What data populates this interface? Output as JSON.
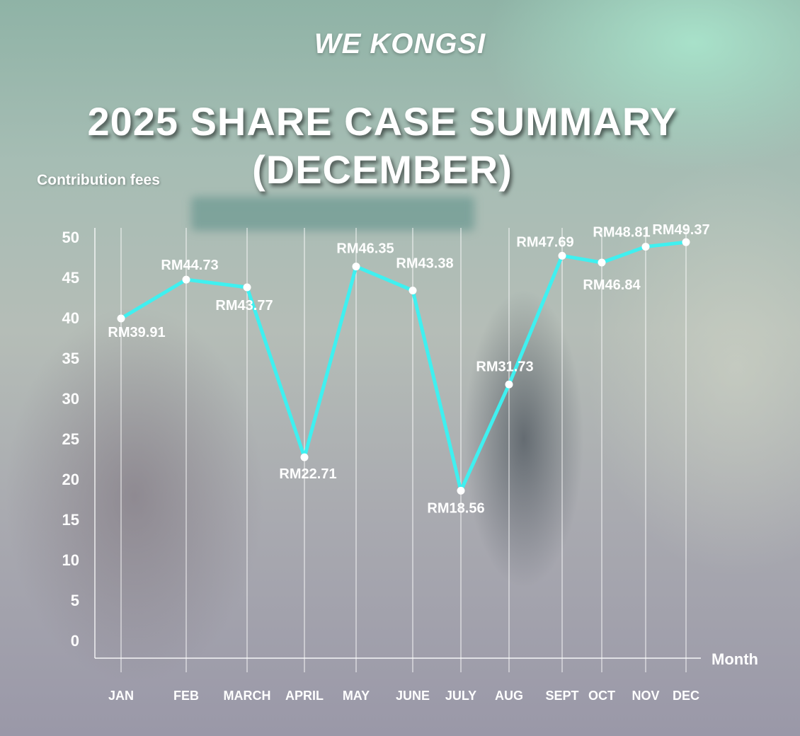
{
  "brand": {
    "logo_text": "WE KONGSI"
  },
  "chart_data": {
    "type": "line",
    "title_line1": "2025 SHARE CASE SUMMARY",
    "title_line2": "(DECEMBER)",
    "ylabel": "Contribution fees",
    "xlabel": "Month",
    "ylim": [
      0,
      50
    ],
    "yticks": [
      0,
      5,
      10,
      15,
      20,
      25,
      30,
      35,
      40,
      45,
      50
    ],
    "grid": "vertical",
    "legend": "none",
    "categories": [
      "JAN",
      "FEB",
      "MARCH",
      "APRIL",
      "MAY",
      "JUNE",
      "JULY",
      "AUG",
      "SEPT",
      "OCT",
      "NOV",
      "DEC"
    ],
    "series": [
      {
        "values": [
          39.91,
          44.73,
          43.77,
          22.71,
          46.35,
          43.38,
          18.56,
          31.73,
          47.69,
          46.84,
          48.81,
          49.37
        ],
        "labels": [
          "RM39.91",
          "RM44.73",
          "RM43.77",
          "RM22.71",
          "RM46.35",
          "RM43.38",
          "RM18.56",
          "RM31.73",
          "RM47.69",
          "RM46.84",
          "RM48.81",
          "RM49.37"
        ],
        "color": "#3ff0f0"
      }
    ],
    "colors": {
      "line": "#3ff0f0",
      "marker": "#ffffff",
      "grid": "#ffffff",
      "text": "#ffffff"
    }
  }
}
